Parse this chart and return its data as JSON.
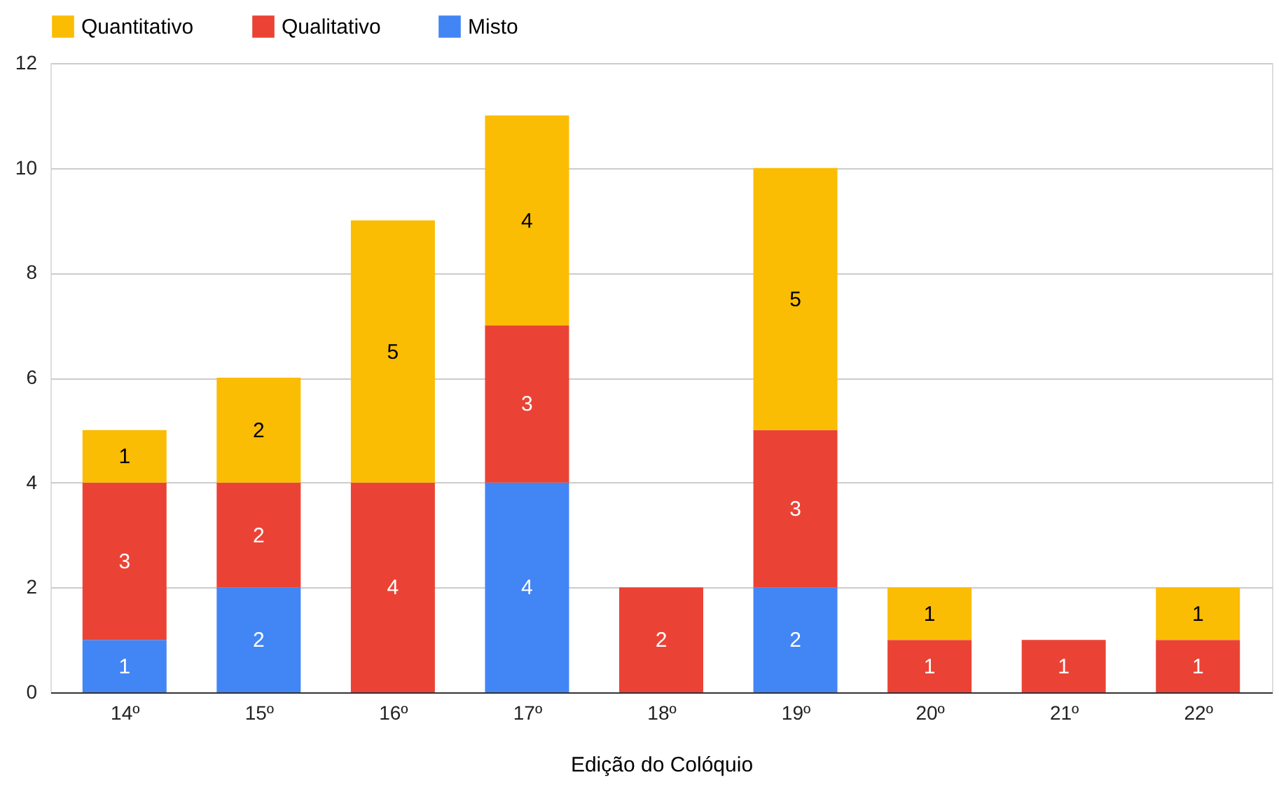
{
  "chart_data": {
    "type": "bar",
    "stacked": true,
    "xlabel": "Edição do Colóquio",
    "categories": [
      "14º",
      "15º",
      "16º",
      "17º",
      "18º",
      "19º",
      "20º",
      "21º",
      "22º"
    ],
    "series": [
      {
        "name": "Misto",
        "color": "#4285f4",
        "values": [
          1,
          2,
          null,
          4,
          null,
          2,
          null,
          null,
          null
        ]
      },
      {
        "name": "Qualitativo",
        "color": "#ea4335",
        "values": [
          3,
          2,
          4,
          3,
          2,
          3,
          1,
          1,
          1
        ]
      },
      {
        "name": "Quantitativo",
        "color": "#fbbc04",
        "values": [
          1,
          2,
          5,
          4,
          null,
          5,
          1,
          null,
          1
        ]
      }
    ],
    "ylim": [
      0,
      12
    ],
    "yticks": [
      0,
      2,
      4,
      6,
      8,
      10,
      12
    ],
    "grid": "y",
    "legend": "top",
    "data_labels": true
  }
}
